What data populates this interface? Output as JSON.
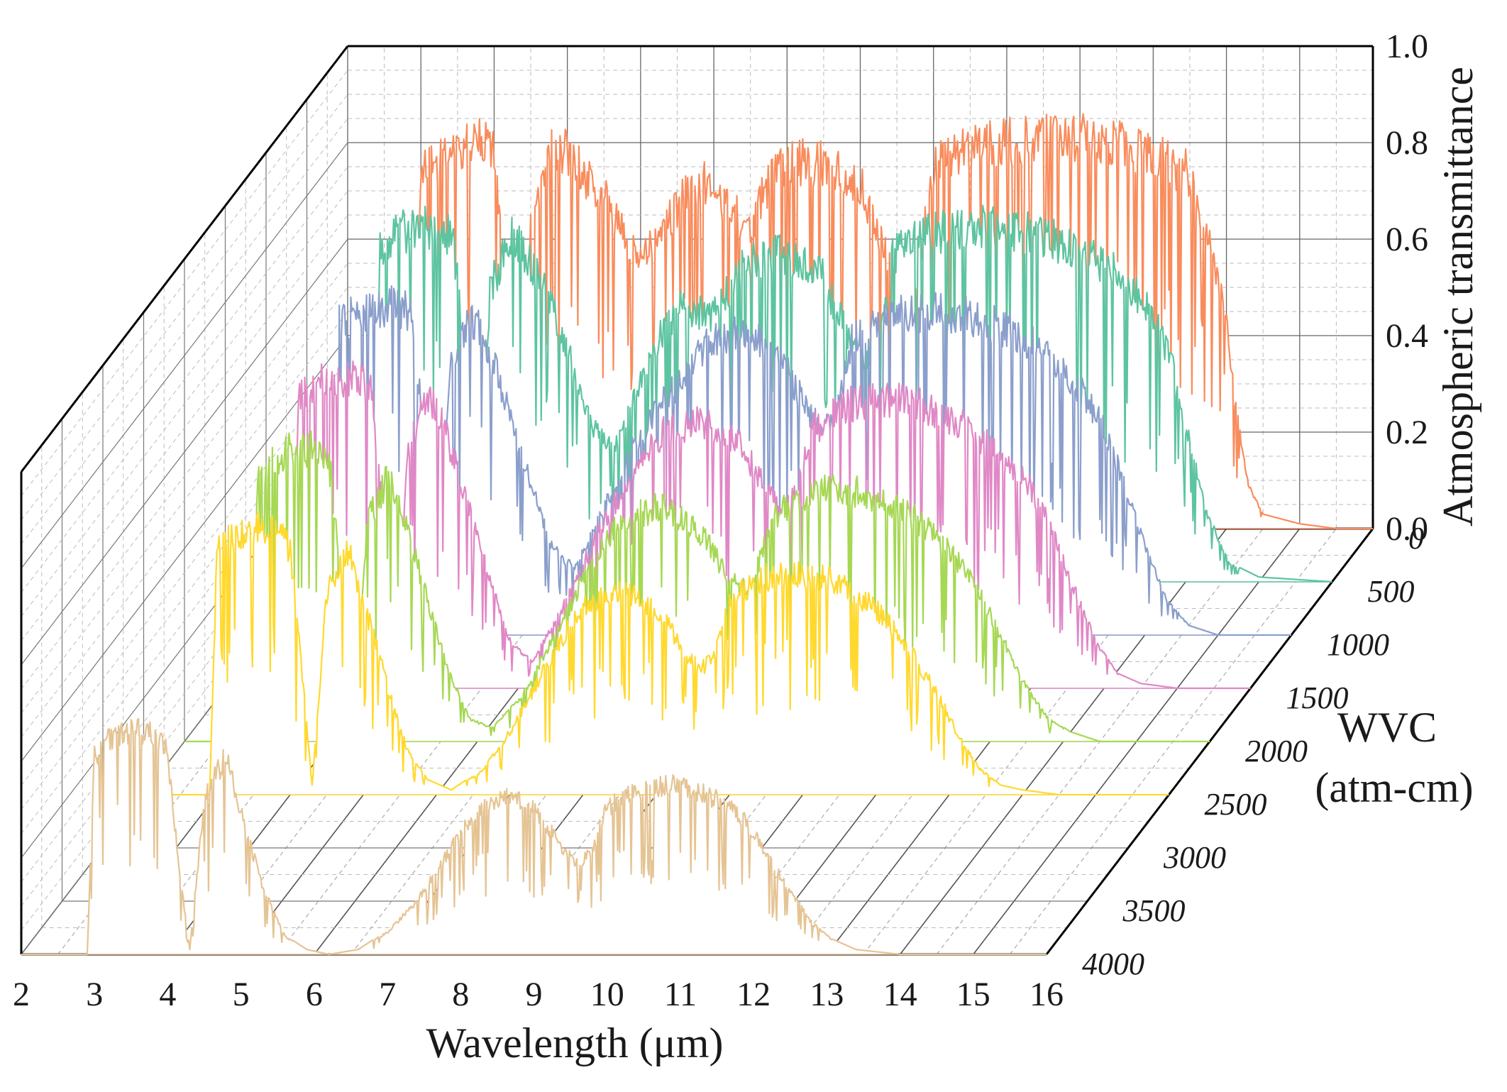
{
  "chart_data": {
    "type": "line",
    "projection": "3d-waterfall",
    "title": "",
    "xlabel": "Wavelength (μm)",
    "ylabel": "WVC",
    "ylabel_unit": "(atm-cm)",
    "zlabel": "Atmospheric transmittance",
    "x_ticks": [
      2,
      3,
      4,
      5,
      6,
      7,
      8,
      9,
      10,
      11,
      12,
      13,
      14,
      15,
      16
    ],
    "y_ticks": [
      "0",
      "500",
      "1000",
      "1500",
      "2000",
      "2500",
      "3000",
      "3500",
      "4000"
    ],
    "z_ticks": [
      "0.0",
      "0.2",
      "0.4",
      "0.6",
      "0.8",
      "1.0"
    ],
    "xlim": [
      2,
      16
    ],
    "ylim": [
      0,
      4000
    ],
    "zlim": [
      0,
      1
    ],
    "grid": true,
    "series": [
      {
        "name": "0",
        "wvc": 0,
        "color": "#f98c5c",
        "x": [
          2.0,
          2.9,
          3.0,
          3.2,
          3.5,
          3.8,
          4.0,
          4.15,
          4.3,
          4.5,
          4.8,
          5.0,
          5.2,
          5.5,
          5.8,
          6.0,
          6.3,
          6.6,
          6.9,
          7.2,
          7.5,
          7.8,
          8.0,
          8.5,
          9.0,
          9.4,
          9.6,
          9.8,
          10.0,
          10.5,
          11.0,
          11.5,
          12.0,
          12.5,
          13.0,
          13.5,
          14.0,
          14.1,
          14.3,
          14.5,
          15.0,
          15.5,
          16.0
        ],
        "y": [
          0,
          0,
          0.8,
          0.82,
          0.85,
          0.87,
          0.85,
          0.55,
          0.02,
          0.7,
          0.86,
          0.85,
          0.8,
          0.75,
          0.65,
          0.6,
          0.68,
          0.75,
          0.78,
          0.72,
          0.68,
          0.8,
          0.83,
          0.82,
          0.78,
          0.6,
          0.55,
          0.58,
          0.82,
          0.86,
          0.87,
          0.88,
          0.88,
          0.87,
          0.84,
          0.8,
          0.5,
          0.3,
          0.1,
          0.03,
          0.01,
          0.0,
          0.0
        ]
      },
      {
        "name": "500",
        "wvc": 500,
        "color": "#5dc4a0",
        "x": [
          2.0,
          2.9,
          3.0,
          3.2,
          3.5,
          3.8,
          4.0,
          4.15,
          4.3,
          4.5,
          4.8,
          5.0,
          5.3,
          5.6,
          5.9,
          6.2,
          6.5,
          6.8,
          7.1,
          7.5,
          7.8,
          8.0,
          8.5,
          9.0,
          9.4,
          9.6,
          9.8,
          10.0,
          10.5,
          11.0,
          11.5,
          12.0,
          12.5,
          13.0,
          13.5,
          13.8,
          14.0,
          14.3,
          14.6,
          15.0,
          16.0
        ],
        "y": [
          0,
          0,
          0.75,
          0.78,
          0.8,
          0.8,
          0.78,
          0.5,
          0.02,
          0.66,
          0.78,
          0.74,
          0.65,
          0.5,
          0.35,
          0.3,
          0.42,
          0.55,
          0.62,
          0.6,
          0.66,
          0.72,
          0.74,
          0.7,
          0.55,
          0.5,
          0.55,
          0.74,
          0.78,
          0.8,
          0.8,
          0.78,
          0.75,
          0.7,
          0.62,
          0.5,
          0.35,
          0.15,
          0.04,
          0.01,
          0.0
        ]
      },
      {
        "name": "1000",
        "wvc": 1000,
        "color": "#8b9fcc",
        "x": [
          2.0,
          2.9,
          3.0,
          3.2,
          3.5,
          3.8,
          4.0,
          4.15,
          4.3,
          4.5,
          4.8,
          5.0,
          5.3,
          5.6,
          5.9,
          6.2,
          6.6,
          7.0,
          7.4,
          7.8,
          8.0,
          8.5,
          9.0,
          9.4,
          9.6,
          9.8,
          10.0,
          10.5,
          11.0,
          11.5,
          12.0,
          12.5,
          13.0,
          13.4,
          13.7,
          14.0,
          14.3,
          14.6,
          15.0,
          16.0
        ],
        "y": [
          0,
          0,
          0.7,
          0.72,
          0.74,
          0.74,
          0.72,
          0.45,
          0.02,
          0.6,
          0.72,
          0.66,
          0.52,
          0.35,
          0.2,
          0.15,
          0.28,
          0.42,
          0.52,
          0.6,
          0.66,
          0.68,
          0.64,
          0.5,
          0.46,
          0.5,
          0.66,
          0.72,
          0.73,
          0.72,
          0.7,
          0.65,
          0.58,
          0.48,
          0.35,
          0.2,
          0.08,
          0.02,
          0.0,
          0.0
        ]
      },
      {
        "name": "1500",
        "wvc": 1500,
        "color": "#e088c6",
        "x": [
          2.0,
          2.9,
          3.0,
          3.2,
          3.5,
          3.8,
          4.0,
          4.15,
          4.3,
          4.5,
          4.8,
          5.0,
          5.3,
          5.6,
          5.9,
          6.2,
          6.6,
          7.0,
          7.4,
          7.8,
          8.0,
          8.5,
          9.0,
          9.4,
          9.6,
          9.8,
          10.0,
          10.5,
          11.0,
          11.5,
          12.0,
          12.5,
          13.0,
          13.3,
          13.6,
          13.9,
          14.2,
          14.5,
          15.0,
          16.0
        ],
        "y": [
          0,
          0,
          0.65,
          0.68,
          0.7,
          0.7,
          0.66,
          0.4,
          0.02,
          0.55,
          0.66,
          0.58,
          0.42,
          0.25,
          0.1,
          0.06,
          0.18,
          0.32,
          0.44,
          0.54,
          0.58,
          0.6,
          0.56,
          0.44,
          0.4,
          0.44,
          0.58,
          0.64,
          0.65,
          0.64,
          0.6,
          0.54,
          0.45,
          0.35,
          0.22,
          0.1,
          0.03,
          0.01,
          0.0,
          0.0
        ]
      },
      {
        "name": "2000",
        "wvc": 2000,
        "color": "#a6d854",
        "x": [
          2.0,
          2.9,
          3.0,
          3.2,
          3.5,
          3.8,
          4.0,
          4.15,
          4.3,
          4.5,
          4.8,
          5.0,
          5.3,
          5.6,
          5.9,
          6.2,
          6.6,
          7.0,
          7.4,
          7.8,
          8.0,
          8.5,
          9.0,
          9.4,
          9.6,
          9.8,
          10.0,
          10.5,
          11.0,
          11.5,
          12.0,
          12.5,
          12.9,
          13.2,
          13.5,
          13.8,
          14.1,
          14.5,
          15.0,
          16.0
        ],
        "y": [
          0,
          0,
          0.6,
          0.63,
          0.66,
          0.66,
          0.6,
          0.35,
          0.02,
          0.5,
          0.6,
          0.5,
          0.33,
          0.16,
          0.05,
          0.03,
          0.1,
          0.22,
          0.35,
          0.46,
          0.5,
          0.53,
          0.48,
          0.38,
          0.34,
          0.38,
          0.5,
          0.56,
          0.57,
          0.55,
          0.5,
          0.42,
          0.32,
          0.22,
          0.12,
          0.05,
          0.02,
          0.0,
          0.0,
          0.0
        ]
      },
      {
        "name": "2500",
        "wvc": 2500,
        "color": "#ffd92f",
        "x": [
          2.0,
          2.9,
          3.0,
          3.2,
          3.5,
          3.8,
          4.0,
          4.15,
          4.3,
          4.5,
          4.8,
          5.0,
          5.3,
          5.6,
          5.9,
          6.2,
          6.6,
          7.0,
          7.4,
          7.8,
          8.0,
          8.5,
          9.0,
          9.4,
          9.6,
          9.8,
          10.0,
          10.5,
          11.0,
          11.5,
          12.0,
          12.4,
          12.8,
          13.1,
          13.4,
          13.7,
          14.0,
          14.5,
          15.0,
          16.0
        ],
        "y": [
          0,
          0,
          0.55,
          0.58,
          0.6,
          0.6,
          0.55,
          0.3,
          0.02,
          0.45,
          0.55,
          0.44,
          0.26,
          0.1,
          0.03,
          0.01,
          0.05,
          0.14,
          0.26,
          0.38,
          0.42,
          0.46,
          0.42,
          0.32,
          0.28,
          0.32,
          0.44,
          0.49,
          0.5,
          0.48,
          0.42,
          0.34,
          0.24,
          0.14,
          0.06,
          0.02,
          0.01,
          0.0,
          0.0,
          0.0
        ]
      },
      {
        "name": "4000",
        "wvc": 4000,
        "color": "#e5c494",
        "x": [
          2.0,
          2.6,
          2.9,
          3.0,
          3.2,
          3.5,
          3.8,
          4.0,
          4.15,
          4.3,
          4.5,
          4.8,
          5.0,
          5.3,
          5.6,
          5.9,
          6.2,
          6.6,
          7.0,
          7.4,
          7.8,
          8.0,
          8.3,
          8.6,
          9.0,
          9.4,
          9.6,
          9.8,
          10.0,
          10.5,
          11.0,
          11.5,
          11.9,
          12.2,
          12.5,
          12.8,
          13.1,
          13.4,
          14.0,
          15.0,
          16.0
        ],
        "y": [
          0,
          0,
          0.0,
          0.45,
          0.48,
          0.5,
          0.5,
          0.45,
          0.2,
          0.01,
          0.35,
          0.45,
          0.32,
          0.15,
          0.04,
          0.01,
          0.0,
          0.01,
          0.05,
          0.12,
          0.22,
          0.28,
          0.33,
          0.36,
          0.33,
          0.24,
          0.2,
          0.24,
          0.33,
          0.38,
          0.38,
          0.35,
          0.3,
          0.22,
          0.14,
          0.07,
          0.03,
          0.01,
          0.0,
          0.0,
          0.0
        ]
      }
    ]
  }
}
